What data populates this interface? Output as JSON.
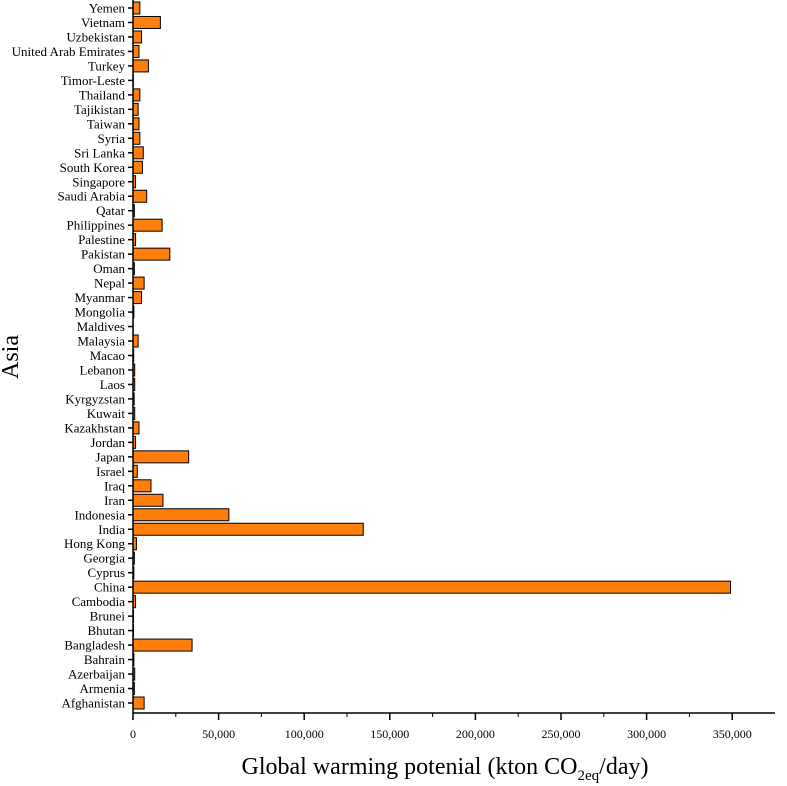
{
  "chart_data": {
    "type": "bar",
    "orientation": "horizontal",
    "title": "",
    "xlabel_main": "Global warming potenial (kton CO",
    "xlabel_sub": "2eq",
    "xlabel_tail": "/day)",
    "ylabel": "Asia",
    "xlim": [
      0,
      375000
    ],
    "x_ticks": [
      0,
      50000,
      100000,
      150000,
      200000,
      250000,
      300000,
      350000
    ],
    "x_tick_labels": [
      "0",
      "50,000",
      "100,000",
      "150,000",
      "200,000",
      "250,000",
      "300,000",
      "350,000"
    ],
    "bar_color": "#ff7f0e",
    "grid": false,
    "categories": [
      "Afghanistan",
      "Armenia",
      "Azerbaijan",
      "Bahrain",
      "Bangladesh",
      "Bhutan",
      "Brunei",
      "Cambodia",
      "China",
      "Cyprus",
      "Georgia",
      "Hong Kong",
      "India",
      "Indonesia",
      "Iran",
      "Iraq",
      "Israel",
      "Japan",
      "Jordan",
      "Kazakhstan",
      "Kuwait",
      "Kyrgyzstan",
      "Laos",
      "Lebanon",
      "Macao",
      "Malaysia",
      "Maldives",
      "Mongolia",
      "Myanmar",
      "Nepal",
      "Oman",
      "Pakistan",
      "Palestine",
      "Philippines",
      "Qatar",
      "Saudi Arabia",
      "Singapore",
      "South Korea",
      "Sri Lanka",
      "Syria",
      "Taiwan",
      "Tajikistan",
      "Thailand",
      "Timor-Leste",
      "Turkey",
      "United Arab Emirates",
      "Uzbekistan",
      "Vietnam",
      "Yemen"
    ],
    "values": [
      6500,
      800,
      1000,
      500,
      34500,
      300,
      300,
      1500,
      349000,
      500,
      800,
      2000,
      134500,
      56000,
      17500,
      10500,
      2500,
      32500,
      1500,
      3500,
      1000,
      700,
      1000,
      1000,
      400,
      3000,
      100,
      500,
      5000,
      6500,
      800,
      21500,
      1500,
      17000,
      800,
      8000,
      1500,
      5500,
      6000,
      4000,
      3500,
      3000,
      4000,
      200,
      9000,
      3500,
      5000,
      16000,
      4000
    ]
  }
}
